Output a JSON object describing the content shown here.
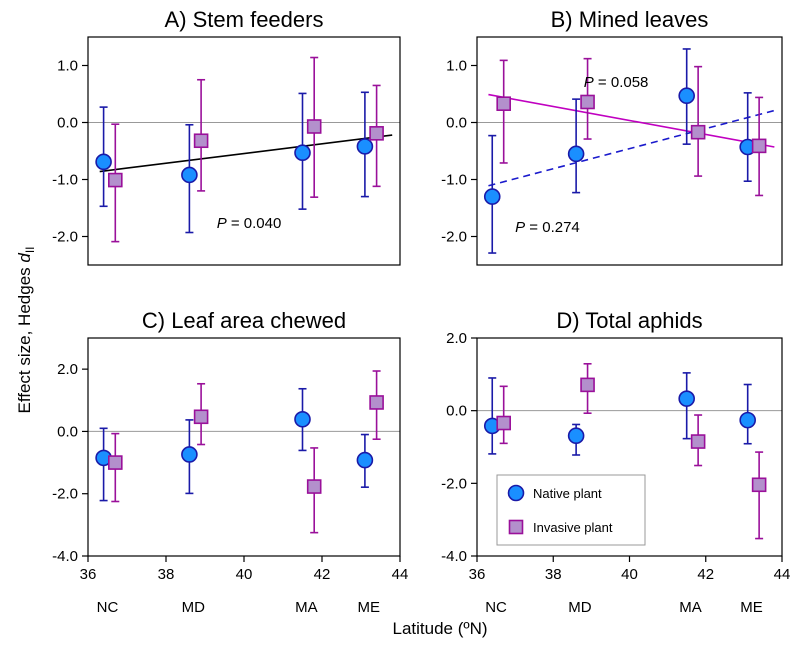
{
  "figure": {
    "ylabel_main": "Effect size, Hedges ",
    "ylabel_d": "d",
    "ylabel_sub": "II",
    "xlabel": "Latitude (ºN)",
    "colors": {
      "native": "#1a8fff",
      "native_edge": "#1a1aa8",
      "invasive": "#b390cc",
      "invasive_edge": "#9a109a",
      "reference": "#999999"
    }
  },
  "states": [
    {
      "label": "NC",
      "lat": 36.5
    },
    {
      "label": "MD",
      "lat": 38.7
    },
    {
      "label": "MA",
      "lat": 41.6
    },
    {
      "label": "ME",
      "lat": 43.2
    }
  ],
  "legend": {
    "native": "Native plant",
    "invasive": "Invasive plant"
  },
  "chart_data": [
    {
      "id": "A",
      "type": "scatter",
      "title": "A) Stem feeders",
      "xlim": [
        36,
        44
      ],
      "ylim": [
        -2.5,
        1.5
      ],
      "yticks": [
        -2.0,
        -1.0,
        0.0,
        1.0
      ],
      "ytick_labels": [
        "-2.0",
        "-1.0",
        "0.0",
        "1.0"
      ],
      "show_xticks": false,
      "series": [
        {
          "name": "Native plant",
          "marker": "circle",
          "points": [
            {
              "x": 36.4,
              "y": -0.69,
              "lo": -1.47,
              "hi": 0.27
            },
            {
              "x": 38.6,
              "y": -0.92,
              "lo": -1.93,
              "hi": -0.04
            },
            {
              "x": 41.5,
              "y": -0.53,
              "lo": -1.52,
              "hi": 0.51
            },
            {
              "x": 43.1,
              "y": -0.42,
              "lo": -1.3,
              "hi": 0.53
            }
          ]
        },
        {
          "name": "Invasive plant",
          "marker": "square",
          "points": [
            {
              "x": 36.7,
              "y": -1.01,
              "lo": -2.09,
              "hi": -0.03
            },
            {
              "x": 38.9,
              "y": -0.32,
              "lo": -1.2,
              "hi": 0.75
            },
            {
              "x": 41.8,
              "y": -0.07,
              "lo": -1.31,
              "hi": 1.14
            },
            {
              "x": 43.4,
              "y": -0.19,
              "lo": -1.12,
              "hi": 0.65
            }
          ]
        }
      ],
      "fits": [
        {
          "x": [
            36.3,
            43.8
          ],
          "y": [
            -0.86,
            -0.22
          ],
          "color": "#000000",
          "dash": false
        }
      ],
      "annotations": [
        {
          "text": "P",
          "value": " = 0.040",
          "x": 39.3,
          "y": -1.85
        }
      ]
    },
    {
      "id": "B",
      "type": "scatter",
      "title": "B) Mined leaves",
      "xlim": [
        36,
        44
      ],
      "ylim": [
        -2.5,
        1.5
      ],
      "yticks": [
        -2.0,
        -1.0,
        0.0,
        1.0
      ],
      "ytick_labels": [
        "-2.0",
        "-1.0",
        "0.0",
        "1.0"
      ],
      "show_xticks": false,
      "series": [
        {
          "name": "Native plant",
          "marker": "circle",
          "points": [
            {
              "x": 36.4,
              "y": -1.3,
              "lo": -2.29,
              "hi": -0.23
            },
            {
              "x": 38.6,
              "y": -0.55,
              "lo": -1.23,
              "hi": 0.41
            },
            {
              "x": 41.5,
              "y": 0.47,
              "lo": -0.38,
              "hi": 1.29
            },
            {
              "x": 43.1,
              "y": -0.43,
              "lo": -1.03,
              "hi": 0.52
            }
          ]
        },
        {
          "name": "Invasive plant",
          "marker": "square",
          "points": [
            {
              "x": 36.7,
              "y": 0.33,
              "lo": -0.71,
              "hi": 1.09
            },
            {
              "x": 38.9,
              "y": 0.36,
              "lo": -0.29,
              "hi": 1.12
            },
            {
              "x": 41.8,
              "y": -0.17,
              "lo": -0.94,
              "hi": 0.98
            },
            {
              "x": 43.4,
              "y": -0.41,
              "lo": -1.28,
              "hi": 0.44
            }
          ]
        }
      ],
      "fits": [
        {
          "x": [
            36.3,
            43.8
          ],
          "y": [
            0.49,
            -0.43
          ],
          "color": "#c000c0",
          "dash": false
        },
        {
          "x": [
            36.3,
            43.8
          ],
          "y": [
            -1.11,
            0.21
          ],
          "color": "#1a1acc",
          "dash": true
        }
      ],
      "annotations": [
        {
          "text": "P",
          "value": " = 0.058",
          "x": 38.8,
          "y": 0.62
        },
        {
          "text": "P",
          "value": " = 0.274",
          "x": 37.0,
          "y": -1.92
        }
      ]
    },
    {
      "id": "C",
      "type": "scatter",
      "title": "C) Leaf area chewed",
      "xlim": [
        36,
        44
      ],
      "ylim": [
        -4.0,
        3.0
      ],
      "yticks": [
        -4.0,
        -2.0,
        0.0,
        2.0
      ],
      "ytick_labels": [
        "-4.0",
        "-2.0",
        "0.0",
        "2.0"
      ],
      "show_xticks": true,
      "xticks": [
        36,
        38,
        40,
        42,
        44
      ],
      "xtick_labels": [
        "36",
        "38",
        "40",
        "42",
        "44"
      ],
      "series": [
        {
          "name": "Native plant",
          "marker": "circle",
          "points": [
            {
              "x": 36.4,
              "y": -0.85,
              "lo": -2.22,
              "hi": 0.1
            },
            {
              "x": 38.6,
              "y": -0.74,
              "lo": -1.99,
              "hi": 0.37
            },
            {
              "x": 41.5,
              "y": 0.39,
              "lo": -0.61,
              "hi": 1.37
            },
            {
              "x": 43.1,
              "y": -0.92,
              "lo": -1.79,
              "hi": -0.1
            }
          ]
        },
        {
          "name": "Invasive plant",
          "marker": "square",
          "points": [
            {
              "x": 36.7,
              "y": -1.0,
              "lo": -2.25,
              "hi": -0.07
            },
            {
              "x": 38.9,
              "y": 0.47,
              "lo": -0.42,
              "hi": 1.53
            },
            {
              "x": 41.8,
              "y": -1.77,
              "lo": -3.25,
              "hi": -0.53
            },
            {
              "x": 43.4,
              "y": 0.93,
              "lo": -0.25,
              "hi": 1.94
            }
          ]
        }
      ],
      "fits": [],
      "annotations": []
    },
    {
      "id": "D",
      "type": "scatter",
      "title": "D) Total aphids",
      "xlim": [
        36,
        44
      ],
      "ylim": [
        -4.0,
        2.0
      ],
      "yticks": [
        -4.0,
        -2.0,
        0.0,
        2.0
      ],
      "ytick_labels": [
        "-4.0",
        "-2.0",
        "0.0",
        "2.0"
      ],
      "show_xticks": true,
      "xticks": [
        36,
        38,
        40,
        42,
        44
      ],
      "xtick_labels": [
        "36",
        "38",
        "40",
        "42",
        "44"
      ],
      "series": [
        {
          "name": "Native plant",
          "marker": "circle",
          "points": [
            {
              "x": 36.4,
              "y": -0.42,
              "lo": -1.19,
              "hi": 0.9
            },
            {
              "x": 38.6,
              "y": -0.69,
              "lo": -1.22,
              "hi": -0.38
            },
            {
              "x": 41.5,
              "y": 0.33,
              "lo": -0.77,
              "hi": 1.04
            },
            {
              "x": 43.1,
              "y": -0.26,
              "lo": -0.91,
              "hi": 0.72
            }
          ]
        },
        {
          "name": "Invasive plant",
          "marker": "square",
          "points": [
            {
              "x": 36.7,
              "y": -0.34,
              "lo": -0.9,
              "hi": 0.67
            },
            {
              "x": 38.9,
              "y": 0.71,
              "lo": -0.07,
              "hi": 1.29
            },
            {
              "x": 41.8,
              "y": -0.85,
              "lo": -1.51,
              "hi": -0.12
            },
            {
              "x": 43.4,
              "y": -2.04,
              "lo": -3.52,
              "hi": -1.14
            }
          ]
        }
      ],
      "fits": [],
      "annotations": [],
      "legend": true,
      "legend_position": "bottom-right"
    }
  ]
}
